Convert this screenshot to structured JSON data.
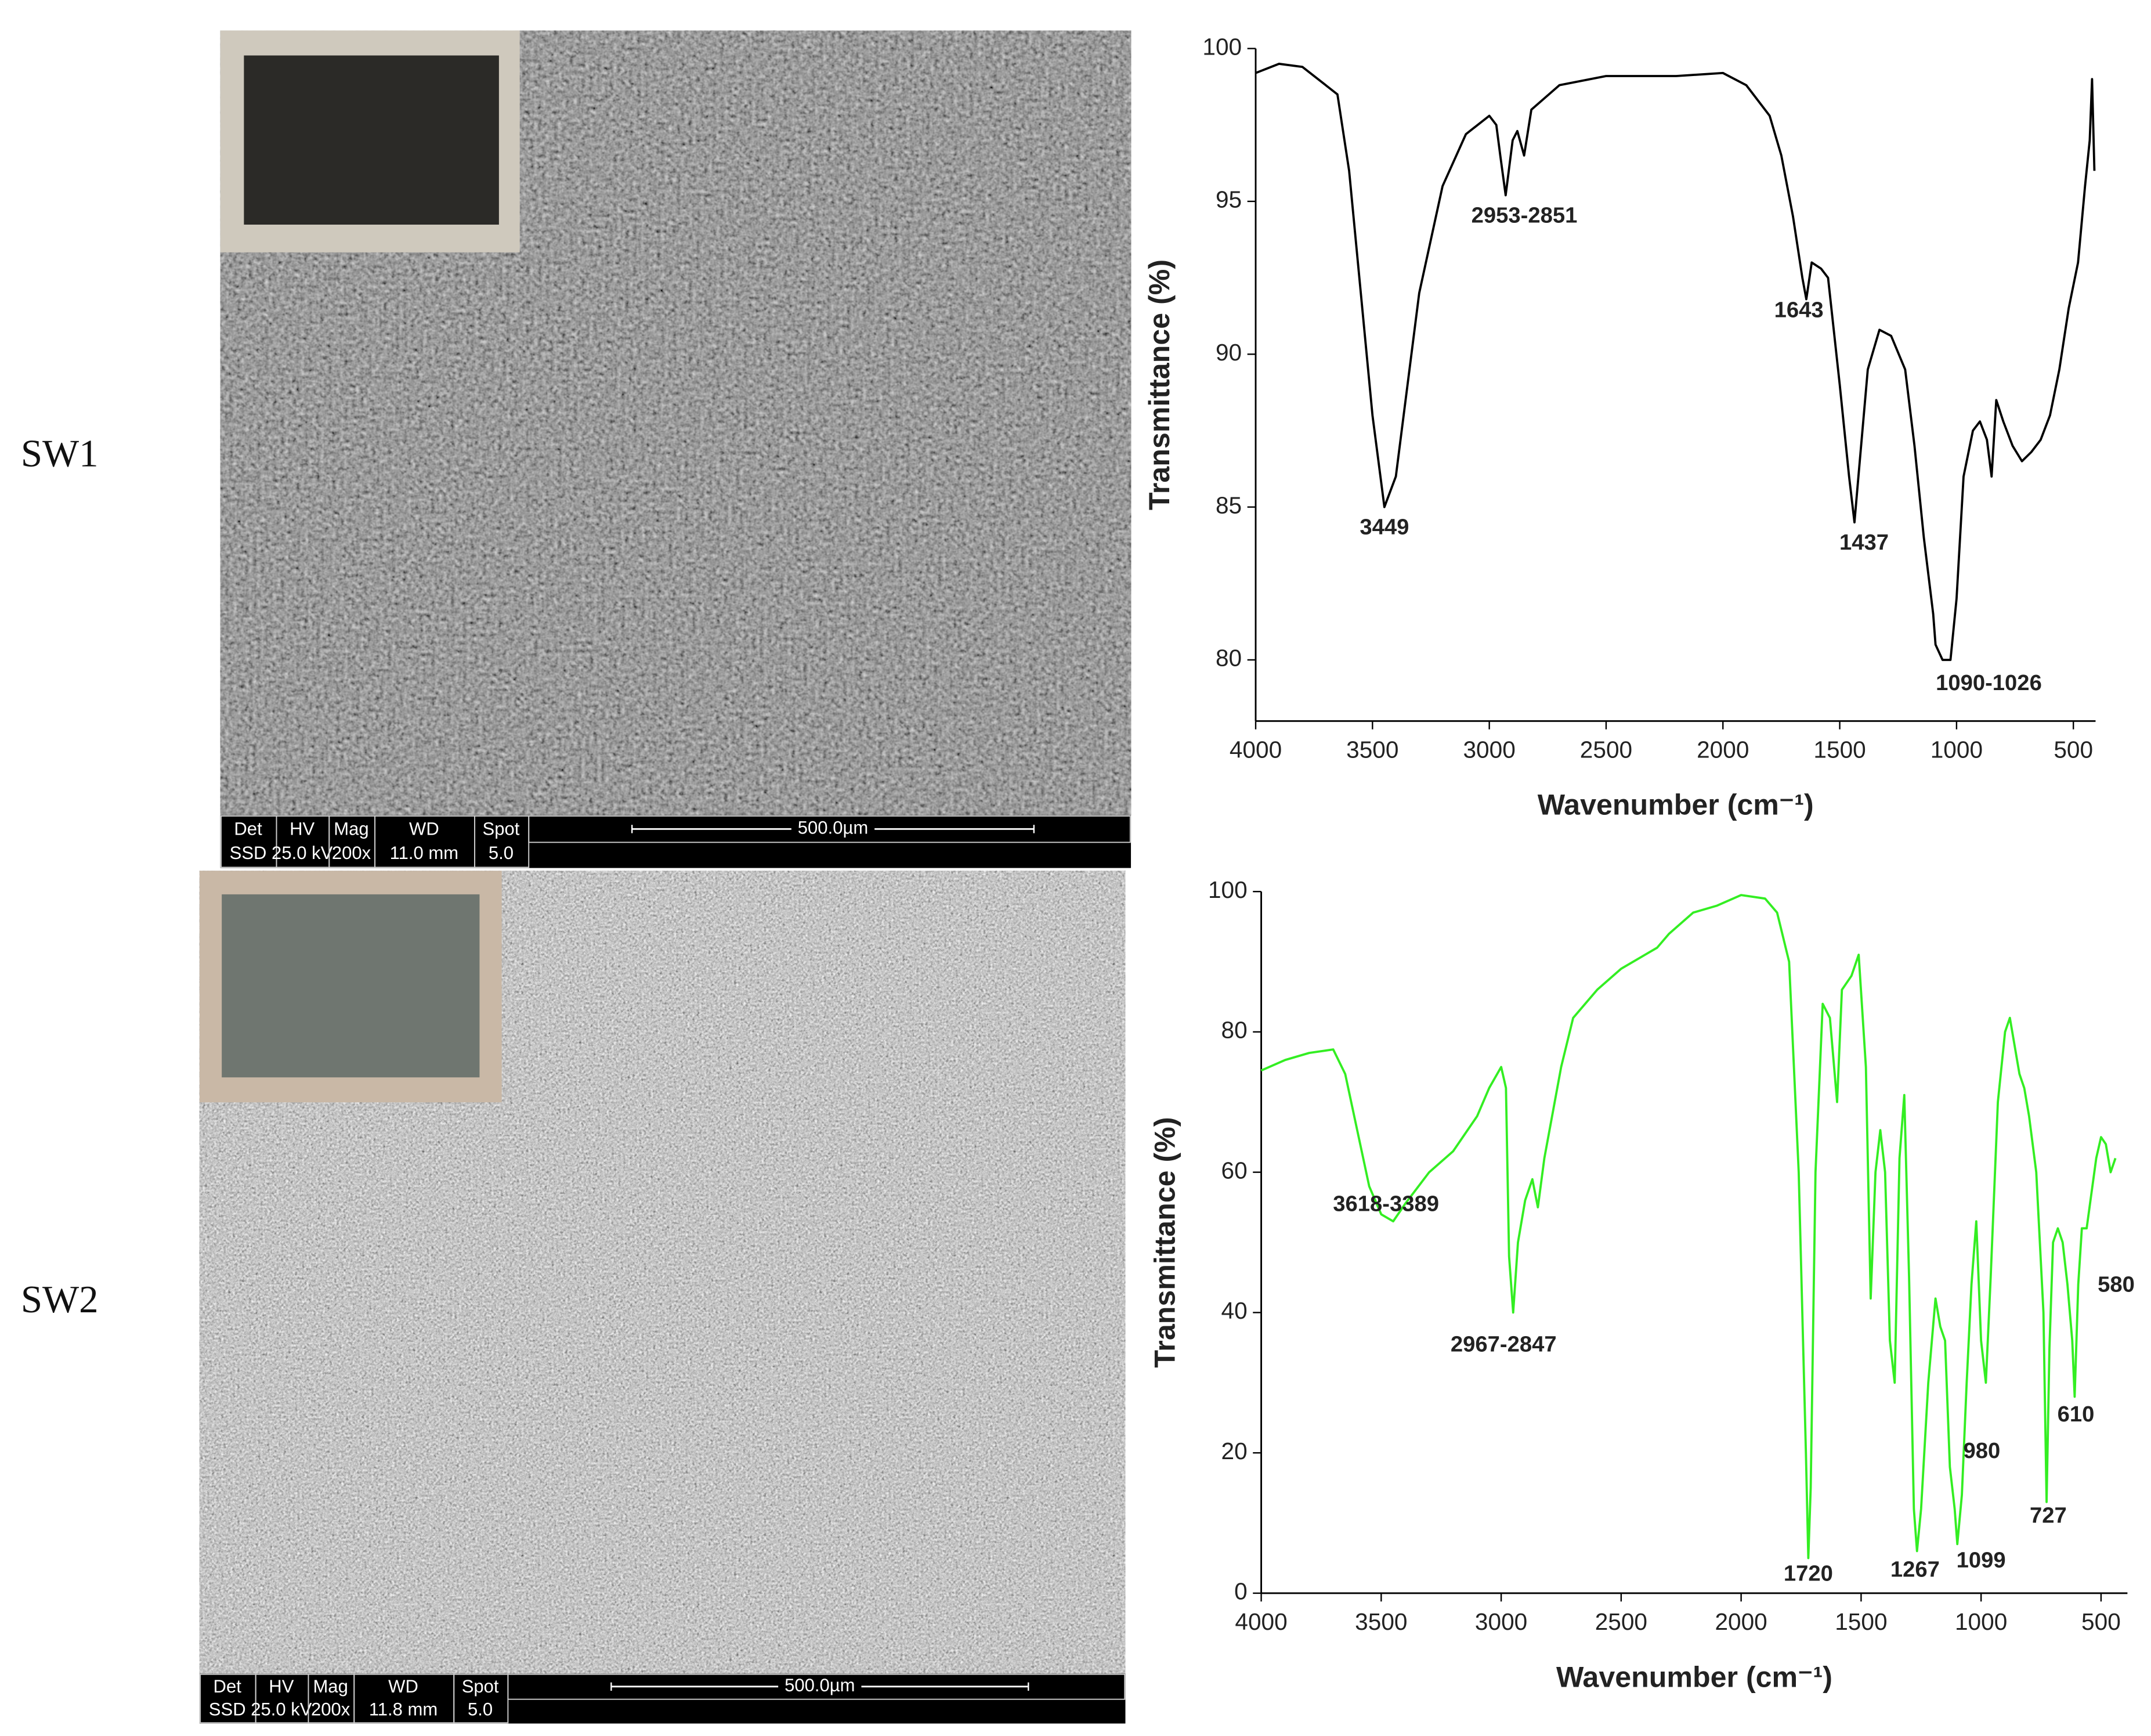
{
  "panels": [
    {
      "label": "SW1",
      "sem_info": {
        "headers": [
          "Det",
          "HV",
          "Mag",
          "WD",
          "Spot"
        ],
        "values": [
          "SSD",
          "25.0 kV",
          "200x",
          "11.0 mm",
          "5.0"
        ],
        "scale": "500.0µm"
      }
    },
    {
      "label": "SW2",
      "sem_info": {
        "headers": [
          "Det",
          "HV",
          "Mag",
          "WD",
          "Spot"
        ],
        "values": [
          "SSD",
          "25.0 kV",
          "200x",
          "11.8 mm",
          "5.0"
        ],
        "scale": "500.0µm"
      }
    }
  ],
  "chart_data": [
    {
      "type": "line",
      "x_label": "Wavenumber (cm⁻¹)",
      "y_label": "Transmittance (%)",
      "color": "#000000",
      "xlim": [
        4000,
        405
      ],
      "xticks": [
        4000,
        3500,
        3000,
        2500,
        2000,
        1500,
        1000,
        500
      ],
      "ylim": [
        78,
        100
      ],
      "yticks": [
        80,
        85,
        90,
        95,
        100
      ],
      "x": [
        4000,
        3900,
        3800,
        3700,
        3650,
        3600,
        3550,
        3500,
        3449,
        3400,
        3350,
        3300,
        3200,
        3100,
        3000,
        2970,
        2953,
        2930,
        2900,
        2880,
        2851,
        2820,
        2700,
        2500,
        2200,
        2000,
        1900,
        1800,
        1750,
        1700,
        1660,
        1643,
        1620,
        1580,
        1550,
        1500,
        1460,
        1437,
        1420,
        1380,
        1330,
        1280,
        1220,
        1180,
        1140,
        1100,
        1090,
        1060,
        1026,
        1000,
        970,
        930,
        900,
        870,
        850,
        830,
        800,
        760,
        720,
        680,
        640,
        600,
        560,
        520,
        480,
        450,
        430,
        420,
        410
      ],
      "values": [
        99.2,
        99.5,
        99.4,
        98.8,
        98.5,
        96,
        92,
        88,
        85.0,
        86,
        89,
        92,
        95.5,
        97.2,
        97.8,
        97.5,
        96.5,
        95.2,
        97,
        97.3,
        96.5,
        98,
        98.8,
        99.1,
        99.1,
        99.2,
        98.8,
        97.8,
        96.5,
        94.5,
        92.5,
        91.8,
        93,
        92.8,
        92.5,
        89,
        86,
        84.5,
        86,
        89.5,
        90.8,
        90.6,
        89.5,
        87,
        84,
        81.5,
        80.5,
        80,
        80,
        82,
        86,
        87.5,
        87.8,
        87.2,
        86,
        88.5,
        87.8,
        87,
        86.5,
        86.8,
        87.2,
        88,
        89.5,
        91.5,
        93,
        95.5,
        97,
        99,
        96
      ],
      "annotations": [
        {
          "text": "3449",
          "x": 3449,
          "y": 84.3
        },
        {
          "text": "2953-2851",
          "x": 2850,
          "y": 94.5
        },
        {
          "text": "1643",
          "x": 1675,
          "y": 91.4
        },
        {
          "text": "1437",
          "x": 1396,
          "y": 83.8
        },
        {
          "text": "1090-1026",
          "x": 862,
          "y": 79.2
        }
      ]
    },
    {
      "type": "line",
      "x_label": "Wavenumber (cm⁻¹)",
      "y_label": "Transmittance (%)",
      "color": "#33ee22",
      "xlim": [
        4000,
        390
      ],
      "xticks": [
        4000,
        3500,
        3000,
        2500,
        2000,
        1500,
        1000,
        500
      ],
      "ylim": [
        0,
        100
      ],
      "yticks": [
        0,
        20,
        40,
        60,
        80,
        100
      ],
      "x": [
        4000,
        3900,
        3800,
        3700,
        3650,
        3600,
        3550,
        3500,
        3450,
        3400,
        3300,
        3200,
        3100,
        3050,
        3000,
        2980,
        2967,
        2950,
        2930,
        2900,
        2870,
        2847,
        2820,
        2750,
        2700,
        2600,
        2500,
        2400,
        2350,
        2300,
        2200,
        2100,
        2000,
        1900,
        1850,
        1800,
        1760,
        1730,
        1720,
        1710,
        1690,
        1660,
        1630,
        1600,
        1580,
        1540,
        1510,
        1480,
        1460,
        1440,
        1420,
        1400,
        1380,
        1360,
        1340,
        1320,
        1300,
        1280,
        1267,
        1250,
        1220,
        1190,
        1170,
        1150,
        1130,
        1110,
        1099,
        1080,
        1060,
        1040,
        1020,
        1000,
        980,
        960,
        930,
        900,
        880,
        860,
        840,
        820,
        800,
        770,
        740,
        727,
        715,
        700,
        680,
        660,
        640,
        620,
        610,
        595,
        580,
        560,
        540,
        520,
        500,
        480,
        460,
        440
      ],
      "values": [
        74.5,
        76,
        77,
        77.5,
        74,
        66,
        58,
        54,
        53,
        55.5,
        60,
        63,
        68,
        72,
        75,
        72,
        48,
        40,
        50,
        56,
        59,
        55,
        62,
        75,
        82,
        86,
        89,
        91,
        92,
        94,
        97,
        98,
        99.5,
        99,
        97,
        90,
        60,
        20,
        5,
        15,
        60,
        84,
        82,
        70,
        86,
        88,
        91,
        75,
        42,
        60,
        66,
        60,
        36,
        30,
        62,
        71,
        45,
        12,
        6,
        12,
        30,
        42,
        38,
        36,
        18,
        12,
        7,
        14,
        30,
        44,
        53,
        36,
        30,
        45,
        70,
        80,
        82,
        78,
        74,
        72,
        68,
        60,
        40,
        13,
        35,
        50,
        52,
        50,
        44,
        36,
        28,
        44,
        52,
        52,
        57,
        62,
        65,
        64,
        60,
        62
      ],
      "annotations": [
        {
          "text": "3618-3389",
          "x": 3480,
          "y": 55.3
        },
        {
          "text": "2967-2847",
          "x": 2990,
          "y": 35.3
        },
        {
          "text": "1720",
          "x": 1720,
          "y": 2.6
        },
        {
          "text": "1267",
          "x": 1275,
          "y": 3.2
        },
        {
          "text": "1099",
          "x": 1000,
          "y": 4.5
        },
        {
          "text": "980",
          "x": 997,
          "y": 20.1
        },
        {
          "text": "727",
          "x": 720,
          "y": 10.9
        },
        {
          "text": "610",
          "x": 605,
          "y": 25.3
        },
        {
          "text": "580",
          "x": 437,
          "y": 43.8
        }
      ]
    }
  ]
}
